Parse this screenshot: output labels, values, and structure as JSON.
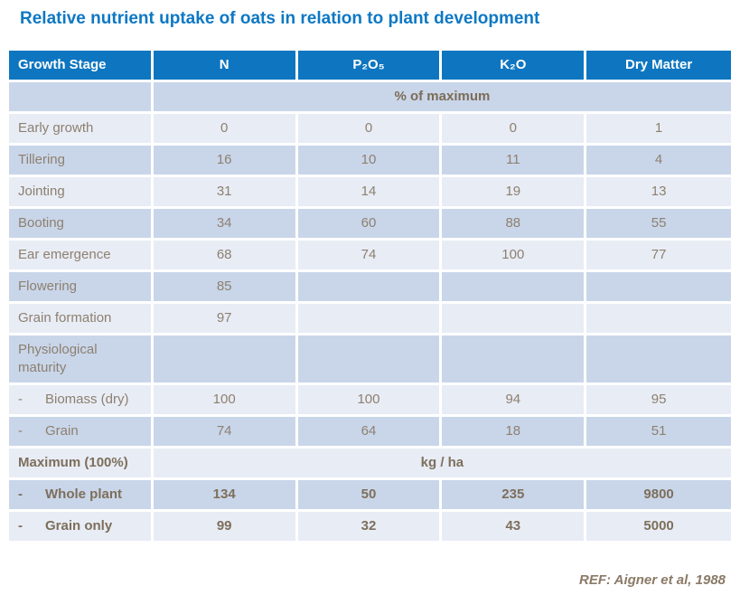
{
  "title": "Relative nutrient uptake of oats in relation to plant development",
  "colors": {
    "header_bg": "#0e76c0",
    "title_text": "#0d78c4",
    "row_light": "#e8ecf5",
    "row_dark": "#c9d6e9",
    "body_text": "#8d8070",
    "bold_text": "#7d6f5b"
  },
  "chart_data": {
    "type": "table",
    "title": "Relative nutrient uptake of oats in relation to plant development",
    "columns": [
      "Growth Stage",
      "N",
      "P₂O₅",
      "K₂O",
      "Dry Matter"
    ],
    "unit_upper": "% of maximum",
    "rows": [
      {
        "dash": "",
        "label": "Early growth",
        "values": [
          "0",
          "0",
          "0",
          "1"
        ]
      },
      {
        "dash": "",
        "label": "Tillering",
        "values": [
          "16",
          "10",
          "11",
          "4"
        ]
      },
      {
        "dash": "",
        "label": "Jointing",
        "values": [
          "31",
          "14",
          "19",
          "13"
        ]
      },
      {
        "dash": "",
        "label": "Booting",
        "values": [
          "34",
          "60",
          "88",
          "55"
        ]
      },
      {
        "dash": "",
        "label": "Ear emergence",
        "values": [
          "68",
          "74",
          "100",
          "77"
        ]
      },
      {
        "dash": "",
        "label": "Flowering",
        "values": [
          "85",
          "",
          "",
          ""
        ]
      },
      {
        "dash": "",
        "label": "Grain formation",
        "values": [
          "97",
          "",
          "",
          ""
        ]
      },
      {
        "dash": "",
        "label": "Physiological maturity",
        "values": [
          "",
          "",
          "",
          ""
        ]
      },
      {
        "dash": "-",
        "label": "Biomass (dry)",
        "values": [
          "100",
          "100",
          "94",
          "95"
        ]
      },
      {
        "dash": "-",
        "label": "Grain",
        "values": [
          "74",
          "64",
          "18",
          "51"
        ]
      }
    ],
    "max_label": "Maximum (100%)",
    "unit_lower": "kg / ha",
    "max_rows": [
      {
        "dash": "-",
        "label": "Whole plant",
        "values": [
          "134",
          "50",
          "235",
          "9800"
        ]
      },
      {
        "dash": "-",
        "label": "Grain only",
        "values": [
          "99",
          "32",
          "43",
          "5000"
        ]
      }
    ]
  },
  "footer": {
    "ref": "REF: Aigner et al, 1988"
  }
}
